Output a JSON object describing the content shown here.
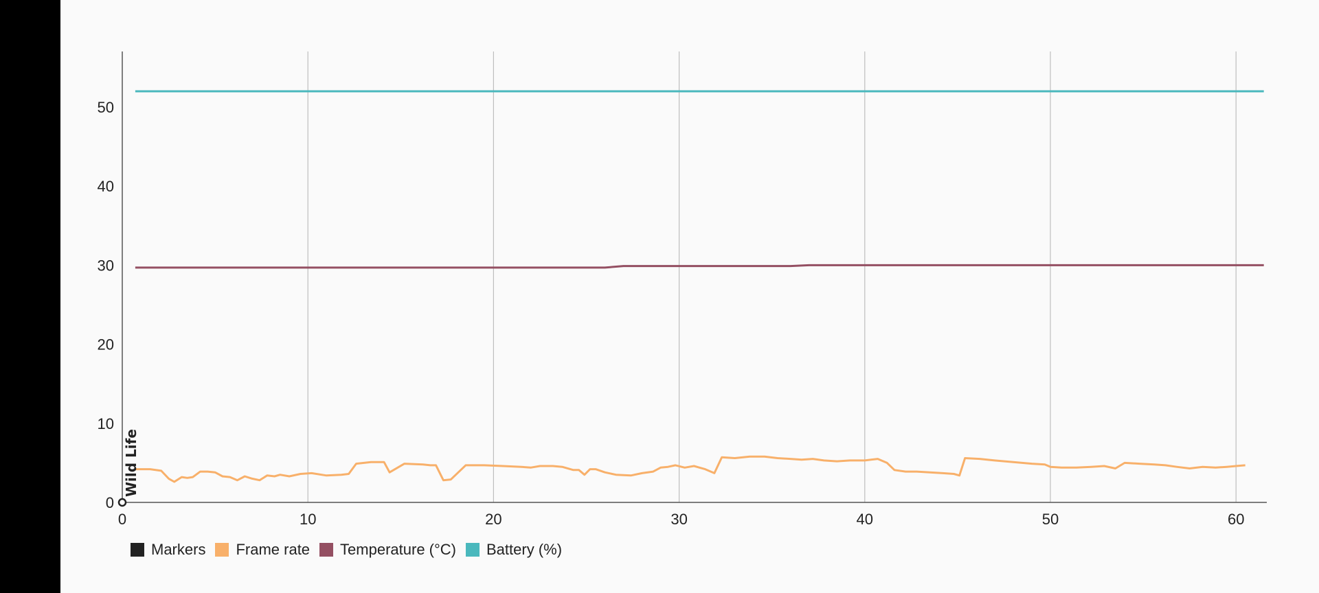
{
  "chart_data": {
    "type": "line",
    "title": "",
    "xlabel": "",
    "ylabel": "",
    "xlim": [
      0,
      61.5
    ],
    "ylim": [
      0,
      57
    ],
    "x_ticks": [
      0,
      10,
      20,
      30,
      40,
      50,
      60
    ],
    "y_ticks": [
      0,
      10,
      20,
      30,
      40,
      50
    ],
    "grid": "vertical",
    "legend_position": "bottom-left",
    "legend": [
      {
        "name": "Markers",
        "color": "#222222"
      },
      {
        "name": "Frame rate",
        "color": "#f8b06a"
      },
      {
        "name": "Temperature (°C)",
        "color": "#944f62"
      },
      {
        "name": "Battery (%)",
        "color": "#4ab8bd"
      }
    ],
    "markers": [
      {
        "x": 0,
        "label": "Wild Life"
      }
    ],
    "series": [
      {
        "name": "Battery (%)",
        "color": "#4ab8bd",
        "x": [
          0.7,
          61.5
        ],
        "y": [
          52,
          52
        ]
      },
      {
        "name": "Temperature (°C)",
        "color": "#944f62",
        "x": [
          0.7,
          26,
          27,
          36,
          37,
          61.5
        ],
        "y": [
          29.7,
          29.7,
          29.9,
          29.9,
          30,
          30
        ]
      },
      {
        "name": "Frame rate",
        "color": "#f8b06a",
        "x": [
          0.7,
          1.5,
          2.1,
          2.5,
          2.8,
          3.2,
          3.5,
          3.8,
          4.2,
          4.6,
          5.0,
          5.4,
          5.8,
          6.2,
          6.6,
          7.0,
          7.4,
          7.8,
          8.2,
          8.5,
          9.0,
          9.6,
          10.2,
          11.0,
          11.8,
          12.2,
          12.6,
          13.4,
          13.8,
          14.1,
          14.4,
          15.2,
          16.2,
          16.6,
          16.9,
          17.3,
          17.7,
          18.5,
          19.5,
          20.5,
          21.5,
          22.0,
          22.5,
          23.2,
          23.7,
          24.3,
          24.6,
          24.9,
          25.2,
          25.5,
          26.0,
          26.6,
          27.4,
          28.0,
          28.6,
          29.0,
          29.4,
          29.8,
          30.3,
          30.8,
          31.4,
          31.9,
          32.3,
          33.0,
          33.8,
          34.6,
          35.3,
          36.0,
          36.6,
          37.2,
          37.8,
          38.5,
          39.2,
          40.0,
          40.7,
          41.2,
          41.6,
          42.2,
          42.8,
          43.5,
          44.2,
          44.8,
          45.1,
          45.4,
          46.2,
          47.0,
          48.0,
          49.0,
          49.7,
          50.0,
          50.6,
          51.4,
          52.2,
          52.9,
          53.5,
          54.0,
          54.8,
          55.6,
          56.2,
          56.8,
          57.5,
          58.2,
          58.9,
          59.5,
          60.0,
          60.5
        ],
        "y": [
          4.2,
          4.2,
          4.0,
          3.0,
          2.6,
          3.2,
          3.1,
          3.2,
          3.9,
          3.9,
          3.8,
          3.3,
          3.2,
          2.8,
          3.3,
          3.0,
          2.8,
          3.4,
          3.3,
          3.5,
          3.3,
          3.6,
          3.7,
          3.4,
          3.5,
          3.6,
          4.9,
          5.1,
          5.1,
          5.1,
          3.8,
          4.9,
          4.8,
          4.7,
          4.7,
          2.8,
          2.9,
          4.7,
          4.7,
          4.6,
          4.5,
          4.4,
          4.6,
          4.6,
          4.5,
          4.1,
          4.1,
          3.5,
          4.2,
          4.2,
          3.8,
          3.5,
          3.4,
          3.7,
          3.9,
          4.4,
          4.5,
          4.7,
          4.4,
          4.6,
          4.2,
          3.7,
          5.7,
          5.6,
          5.8,
          5.8,
          5.6,
          5.5,
          5.4,
          5.5,
          5.3,
          5.2,
          5.3,
          5.3,
          5.5,
          5.0,
          4.1,
          3.9,
          3.9,
          3.8,
          3.7,
          3.6,
          3.4,
          5.6,
          5.5,
          5.3,
          5.1,
          4.9,
          4.8,
          4.5,
          4.4,
          4.4,
          4.5,
          4.6,
          4.3,
          5.0,
          4.9,
          4.8,
          4.7,
          4.5,
          4.3,
          4.5,
          4.4,
          4.5,
          4.6,
          4.7
        ]
      }
    ]
  }
}
